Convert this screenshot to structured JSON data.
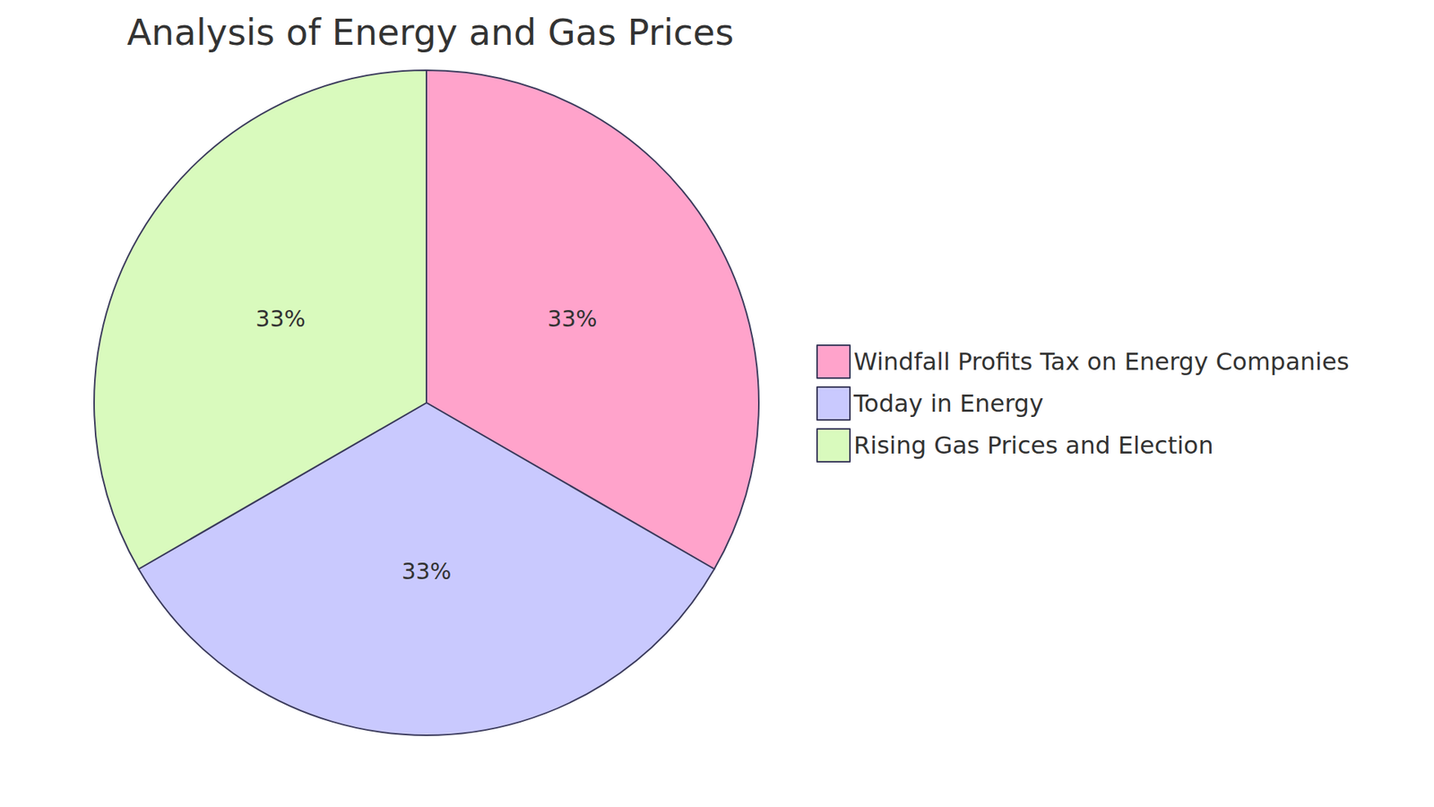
{
  "chart_data": {
    "type": "pie",
    "title": "Analysis of Energy and Gas Prices",
    "categories": [
      "Windfall Profits Tax on Energy Companies",
      "Today in Energy",
      "Rising Gas Prices and Election"
    ],
    "values": [
      33,
      33,
      33
    ],
    "value_labels": [
      "33%",
      "33%",
      "33%"
    ],
    "colors": [
      "#ffa3cb",
      "#c9c9fe",
      "#d9fabd"
    ],
    "data_labels": true,
    "legend": "right"
  }
}
